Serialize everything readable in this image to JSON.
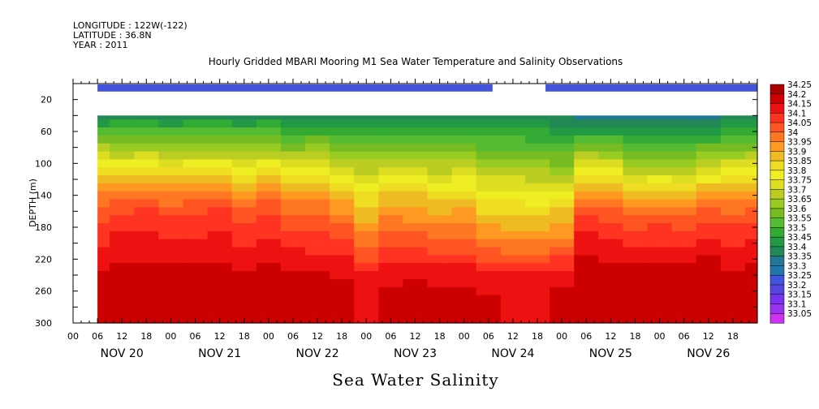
{
  "header": {
    "longitude": "LONGITUDE : 122W(-122)",
    "latitude": "LATITUDE : 36.8N",
    "year": "YEAR : 2011",
    "title": "Hourly Gridded MBARI Mooring M1 Sea Water Temperature and Salinity Observations"
  },
  "footer": {
    "variable": "Sea Water Salinity"
  },
  "chart_data": {
    "type": "heatmap",
    "title": "Hourly Gridded MBARI Mooring M1 Sea Water Temperature and Salinity Observations",
    "xlabel": "",
    "ylabel": "DEPTH (m)",
    "variable": "Sea Water Salinity",
    "x_range_hours": [
      0,
      168
    ],
    "y_range": [
      0,
      300
    ],
    "y_inverted": true,
    "y_ticks": [
      20,
      60,
      100,
      140,
      180,
      220,
      260,
      300
    ],
    "x_hour_ticks": [
      "00",
      "06",
      "12",
      "18",
      "00",
      "06",
      "12",
      "18",
      "00",
      "06",
      "12",
      "18",
      "00",
      "06",
      "12",
      "18",
      "00",
      "06",
      "12",
      "18",
      "00",
      "06",
      "12",
      "18",
      "00",
      "06",
      "12",
      "18"
    ],
    "x_day_labels": [
      "NOV 20",
      "NOV 21",
      "NOV 22",
      "NOV 23",
      "NOV 24",
      "NOV 25",
      "NOV 26"
    ],
    "data_start_hour": 6,
    "data_end_hour": 168,
    "surface_band": {
      "depth_range": [
        1,
        10
      ],
      "value": 33.25,
      "gap_hours": [
        [
          0,
          6
        ],
        [
          103,
          116
        ]
      ]
    },
    "gap_depth_range": [
      10,
      40
    ],
    "profile_depths": [
      40,
      50,
      60,
      70,
      80,
      90,
      100,
      110,
      120,
      130,
      140,
      150,
      160,
      170,
      180,
      190,
      200,
      210,
      220,
      230,
      240,
      250,
      260,
      270,
      280,
      290,
      300
    ],
    "profile_times_hours": [
      6,
      12,
      18,
      24,
      30,
      36,
      42,
      48,
      54,
      60,
      66,
      72,
      78,
      84,
      90,
      96,
      102,
      108,
      114,
      120,
      126,
      132,
      138,
      144,
      150,
      156,
      162,
      168
    ],
    "profiles": [
      [
        33.42,
        33.47,
        33.55,
        33.62,
        33.7,
        33.78,
        33.84,
        33.88,
        33.93,
        33.97,
        34.01,
        34.04,
        34.07,
        34.09,
        34.11,
        34.13,
        34.14,
        34.16,
        34.18,
        34.19,
        34.21,
        34.22,
        34.22,
        34.23,
        34.23,
        34.23,
        34.23
      ],
      [
        33.44,
        33.5,
        33.56,
        33.62,
        33.68,
        33.74,
        33.8,
        33.86,
        33.91,
        33.96,
        34.02,
        34.06,
        34.09,
        34.11,
        34.13,
        34.15,
        34.16,
        34.17,
        34.19,
        34.2,
        34.21,
        34.22,
        34.23,
        34.23,
        34.23,
        34.23,
        34.23
      ],
      [
        33.44,
        33.5,
        33.56,
        33.62,
        33.69,
        33.76,
        33.82,
        33.88,
        33.94,
        33.99,
        34.04,
        34.07,
        34.1,
        34.12,
        34.14,
        34.15,
        34.16,
        34.18,
        34.19,
        34.2,
        34.22,
        34.23,
        34.24,
        34.24,
        34.23,
        34.23,
        34.23
      ],
      [
        33.43,
        33.49,
        33.55,
        33.61,
        33.67,
        33.73,
        33.79,
        33.85,
        33.91,
        33.96,
        34.0,
        34.04,
        34.07,
        34.1,
        34.12,
        34.13,
        34.15,
        34.17,
        34.18,
        34.2,
        34.21,
        34.22,
        34.22,
        34.22,
        34.22,
        34.22,
        34.22
      ],
      [
        33.44,
        33.5,
        33.56,
        33.62,
        33.68,
        33.74,
        33.8,
        33.86,
        33.92,
        33.97,
        34.02,
        34.06,
        34.09,
        34.11,
        34.13,
        34.14,
        34.16,
        34.17,
        34.19,
        34.2,
        34.21,
        34.22,
        34.23,
        34.23,
        34.23,
        34.23,
        34.23
      ],
      [
        33.44,
        33.5,
        33.56,
        33.62,
        33.68,
        33.74,
        33.8,
        33.86,
        33.92,
        33.98,
        34.03,
        34.07,
        34.1,
        34.12,
        34.14,
        34.15,
        34.17,
        34.18,
        34.19,
        34.21,
        34.22,
        34.22,
        34.22,
        34.22,
        34.22,
        34.22,
        34.22
      ],
      [
        33.43,
        33.49,
        33.55,
        33.61,
        33.67,
        33.73,
        33.78,
        33.84,
        33.89,
        33.94,
        33.98,
        34.02,
        34.05,
        34.08,
        34.1,
        34.12,
        34.14,
        34.16,
        34.17,
        34.19,
        34.2,
        34.21,
        34.22,
        34.22,
        34.22,
        34.22,
        34.22
      ],
      [
        33.44,
        33.5,
        33.56,
        33.62,
        33.68,
        33.74,
        33.8,
        33.86,
        33.91,
        33.96,
        34.01,
        34.05,
        34.08,
        34.1,
        34.12,
        34.14,
        34.16,
        34.17,
        34.19,
        34.2,
        34.21,
        34.22,
        34.23,
        34.23,
        34.23,
        34.23,
        34.23
      ],
      [
        33.42,
        33.47,
        33.52,
        33.58,
        33.64,
        33.7,
        33.76,
        33.81,
        33.87,
        33.92,
        33.97,
        34.01,
        34.04,
        34.07,
        34.09,
        34.11,
        34.13,
        34.15,
        34.17,
        34.19,
        34.2,
        34.21,
        34.22,
        34.22,
        34.22,
        34.22,
        34.22
      ],
      [
        33.43,
        33.48,
        33.54,
        33.6,
        33.66,
        33.72,
        33.77,
        33.82,
        33.87,
        33.92,
        33.96,
        34.0,
        34.03,
        34.06,
        34.08,
        34.1,
        34.12,
        34.14,
        34.16,
        34.18,
        34.2,
        34.21,
        34.22,
        34.22,
        34.22,
        34.22,
        34.22
      ],
      [
        33.43,
        33.48,
        33.53,
        33.58,
        33.63,
        33.69,
        33.74,
        33.79,
        33.84,
        33.88,
        33.92,
        33.96,
        33.99,
        34.02,
        34.05,
        34.08,
        34.1,
        34.13,
        34.15,
        34.17,
        34.19,
        34.2,
        34.21,
        34.21,
        34.21,
        34.21,
        34.21
      ],
      [
        33.42,
        33.46,
        33.51,
        33.55,
        33.6,
        33.65,
        33.7,
        33.74,
        33.78,
        33.82,
        33.86,
        33.89,
        33.92,
        33.94,
        33.97,
        34.0,
        34.03,
        34.06,
        34.09,
        34.12,
        34.15,
        34.17,
        34.18,
        34.18,
        34.18,
        34.18,
        34.18
      ],
      [
        33.42,
        33.46,
        33.51,
        33.56,
        33.61,
        33.66,
        33.71,
        33.76,
        33.81,
        33.86,
        33.9,
        33.94,
        33.97,
        34.0,
        34.03,
        34.06,
        34.08,
        34.11,
        34.13,
        34.15,
        34.17,
        34.19,
        34.2,
        34.21,
        34.21,
        34.21,
        34.21
      ],
      [
        33.42,
        33.46,
        33.51,
        33.56,
        33.61,
        33.66,
        33.71,
        33.76,
        33.81,
        33.86,
        33.9,
        33.93,
        33.96,
        33.99,
        34.02,
        34.05,
        34.08,
        34.11,
        34.14,
        34.17,
        34.19,
        34.2,
        34.21,
        34.21,
        34.21,
        34.21,
        34.21
      ],
      [
        33.42,
        33.46,
        33.51,
        33.55,
        33.6,
        33.65,
        33.7,
        33.74,
        33.79,
        33.83,
        33.87,
        33.91,
        33.94,
        33.97,
        34.0,
        34.03,
        34.06,
        34.09,
        34.12,
        34.15,
        34.17,
        34.19,
        34.2,
        34.21,
        34.21,
        34.21,
        34.21
      ],
      [
        33.42,
        33.46,
        33.5,
        33.55,
        33.6,
        33.65,
        33.7,
        33.75,
        33.8,
        33.84,
        33.88,
        33.92,
        33.95,
        33.98,
        34.0,
        34.03,
        34.06,
        34.09,
        34.12,
        34.15,
        34.17,
        34.19,
        34.2,
        34.21,
        34.21,
        34.21,
        34.21
      ],
      [
        33.43,
        33.47,
        33.51,
        33.55,
        33.59,
        33.63,
        33.67,
        33.71,
        33.75,
        33.79,
        33.83,
        33.86,
        33.89,
        33.92,
        33.95,
        33.98,
        34.01,
        34.05,
        34.09,
        34.13,
        34.16,
        34.18,
        34.19,
        34.2,
        34.2,
        34.2,
        34.2
      ],
      [
        33.43,
        33.47,
        33.51,
        33.55,
        33.59,
        33.63,
        33.67,
        33.71,
        33.75,
        33.79,
        33.82,
        33.85,
        33.88,
        33.91,
        33.94,
        33.97,
        34.0,
        34.04,
        34.08,
        34.12,
        34.15,
        34.17,
        34.18,
        34.19,
        34.19,
        34.19,
        34.19
      ],
      [
        33.42,
        33.46,
        33.5,
        33.54,
        33.58,
        33.62,
        33.66,
        33.7,
        33.74,
        33.78,
        33.81,
        33.84,
        33.87,
        33.9,
        33.93,
        33.96,
        34.0,
        34.04,
        34.08,
        34.12,
        34.15,
        34.17,
        34.18,
        34.19,
        34.19,
        34.19,
        34.19
      ],
      [
        33.4,
        33.44,
        33.48,
        33.52,
        33.56,
        33.6,
        33.64,
        33.69,
        33.74,
        33.79,
        33.83,
        33.87,
        33.9,
        33.93,
        33.96,
        33.99,
        34.02,
        34.06,
        34.1,
        34.14,
        34.17,
        34.19,
        34.2,
        34.21,
        34.21,
        34.21,
        34.21
      ],
      [
        33.38,
        33.43,
        33.49,
        33.56,
        33.63,
        33.7,
        33.77,
        33.83,
        33.89,
        33.94,
        33.99,
        34.03,
        34.07,
        34.1,
        34.13,
        34.15,
        34.17,
        34.18,
        34.2,
        34.21,
        34.22,
        34.23,
        34.24,
        34.24,
        34.23,
        34.23,
        34.23
      ],
      [
        33.37,
        33.42,
        33.48,
        33.55,
        33.62,
        33.69,
        33.76,
        33.82,
        33.88,
        33.93,
        33.98,
        34.02,
        34.06,
        34.09,
        34.12,
        34.14,
        34.16,
        34.18,
        34.19,
        34.21,
        34.22,
        34.23,
        34.24,
        34.24,
        34.23,
        34.23,
        34.23
      ],
      [
        33.37,
        33.41,
        33.46,
        33.51,
        33.56,
        33.61,
        33.67,
        33.73,
        33.79,
        33.85,
        33.91,
        33.97,
        34.02,
        34.06,
        34.09,
        34.12,
        34.14,
        34.16,
        34.18,
        34.2,
        34.21,
        34.22,
        34.22,
        34.22,
        34.22,
        34.22,
        34.22
      ],
      [
        33.37,
        33.41,
        33.46,
        33.51,
        33.56,
        33.62,
        33.68,
        33.74,
        33.8,
        33.86,
        33.92,
        33.98,
        34.03,
        34.07,
        34.1,
        34.12,
        34.14,
        34.16,
        34.18,
        34.2,
        34.21,
        34.22,
        34.23,
        34.23,
        34.22,
        34.22,
        34.22
      ],
      [
        33.37,
        33.41,
        33.46,
        33.51,
        33.56,
        33.61,
        33.67,
        33.73,
        33.79,
        33.85,
        33.91,
        33.97,
        34.02,
        34.06,
        34.09,
        34.12,
        34.14,
        34.16,
        34.18,
        34.2,
        34.21,
        34.22,
        34.22,
        34.22,
        34.22,
        34.22,
        34.22
      ],
      [
        33.38,
        33.43,
        33.48,
        33.54,
        33.6,
        33.66,
        33.72,
        33.78,
        33.84,
        33.9,
        33.96,
        34.01,
        34.05,
        34.09,
        34.12,
        34.14,
        34.16,
        34.18,
        34.2,
        34.21,
        34.22,
        34.23,
        34.24,
        34.24,
        34.23,
        34.23,
        34.23
      ],
      [
        33.4,
        33.45,
        33.51,
        33.57,
        33.63,
        33.69,
        33.75,
        33.81,
        33.86,
        33.91,
        33.96,
        34.0,
        34.04,
        34.07,
        34.1,
        34.12,
        34.14,
        34.16,
        34.18,
        34.19,
        34.21,
        34.22,
        34.22,
        34.22,
        34.22,
        34.22,
        34.22
      ],
      [
        33.41,
        33.46,
        33.52,
        33.58,
        33.64,
        33.7,
        33.76,
        33.82,
        33.87,
        33.92,
        33.97,
        34.01,
        34.05,
        34.08,
        34.11,
        34.13,
        34.15,
        34.17,
        34.18,
        34.2,
        34.21,
        34.22,
        34.23,
        34.23,
        34.22,
        34.22,
        34.22
      ]
    ],
    "colorbar": {
      "levels": [
        33.05,
        33.1,
        33.15,
        33.2,
        33.25,
        33.3,
        33.35,
        33.4,
        33.45,
        33.5,
        33.55,
        33.6,
        33.65,
        33.7,
        33.75,
        33.8,
        33.85,
        33.9,
        33.95,
        34,
        34.05,
        34.1,
        34.15,
        34.2,
        34.25
      ],
      "labels": [
        "33.05",
        "33.1",
        "33.15",
        "33.2",
        "33.25",
        "33.3",
        "33.35",
        "33.4",
        "33.45",
        "33.5",
        "33.55",
        "33.6",
        "33.65",
        "33.7",
        "33.75",
        "33.8",
        "33.85",
        "33.9",
        "33.95",
        "34",
        "34.05",
        "34.1",
        "34.15",
        "34.2",
        "34.25"
      ],
      "colors": [
        "#cc33ee",
        "#9933ee",
        "#7733ee",
        "#5544dd",
        "#4455dd",
        "#2277aa",
        "#227799",
        "#228855",
        "#229944",
        "#33aa33",
        "#55bb33",
        "#77bb22",
        "#99cc22",
        "#bbcc22",
        "#dddd22",
        "#eeee22",
        "#eedd22",
        "#eebb22",
        "#ff9922",
        "#ff7722",
        "#ff5522",
        "#ff3322",
        "#ee1111",
        "#cc0000",
        "#aa0000"
      ]
    }
  }
}
